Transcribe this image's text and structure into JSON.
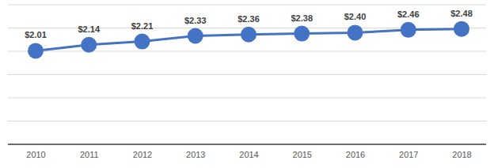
{
  "chart_data": {
    "type": "line",
    "categories": [
      "2010",
      "2011",
      "2012",
      "2013",
      "2014",
      "2015",
      "2016",
      "2017",
      "2018"
    ],
    "values": [
      2.01,
      2.14,
      2.21,
      2.33,
      2.36,
      2.38,
      2.4,
      2.46,
      2.48
    ],
    "value_labels": [
      "$2.01",
      "$2.14",
      "$2.21",
      "$2.33",
      "$2.36",
      "$2.38",
      "$2.40",
      "$2.46",
      "$2.48"
    ],
    "color": "#4472c4",
    "marker": "circle",
    "line_style": "solid",
    "ylim": [
      0,
      3
    ],
    "yticks": [
      0,
      0.5,
      1,
      1.5,
      2,
      2.5,
      3
    ],
    "grid": true,
    "data_labels": true,
    "tick_labels": "x"
  }
}
